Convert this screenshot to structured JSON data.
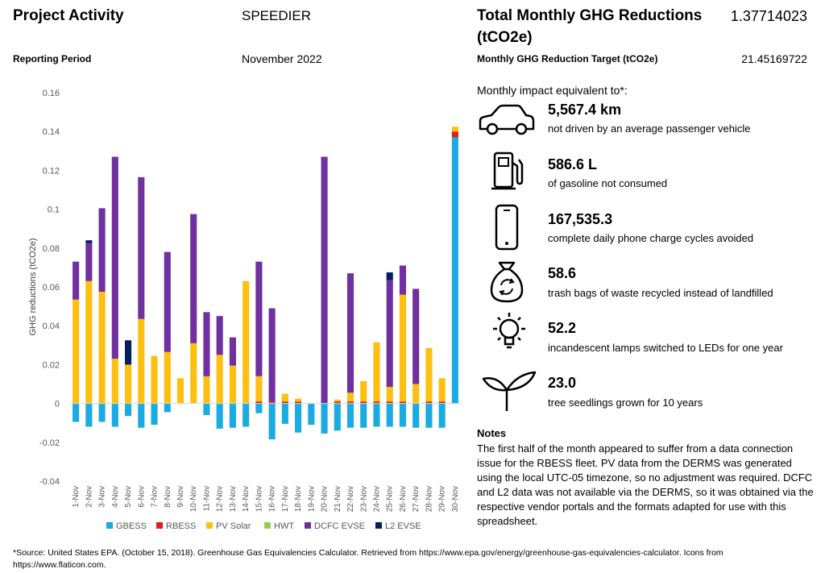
{
  "header": {
    "project_activity_label": "Project Activity",
    "project_name": "SPEEDIER",
    "reporting_period_label": "Reporting Period",
    "reporting_period_value": "November 2022",
    "total_label_line1": "Total Monthly GHG Reductions",
    "total_label_line2": "(tCO2e)",
    "total_value": "1.37714023",
    "target_label": "Monthly GHG Reduction Target (tCO2e)",
    "target_value": "21.45169722"
  },
  "impact": {
    "intro": "Monthly impact equivalent to*:",
    "items": [
      {
        "icon": "car-icon",
        "value": "5,567.4 km",
        "desc": "not driven by an average passenger vehicle"
      },
      {
        "icon": "fuel-pump-icon",
        "value": "586.6 L",
        "desc": "of gasoline not consumed"
      },
      {
        "icon": "smartphone-icon",
        "value": "167,535.3",
        "desc": "complete daily phone charge cycles avoided"
      },
      {
        "icon": "recycle-bag-icon",
        "value": "58.6",
        "desc": "trash bags of waste recycled instead of landfilled"
      },
      {
        "icon": "lightbulb-icon",
        "value": "52.2",
        "desc": "incandescent lamps switched to LEDs for one year"
      },
      {
        "icon": "seedling-icon",
        "value": "23.0",
        "desc": "tree seedlings grown for 10 years"
      }
    ]
  },
  "notes": {
    "title": "Notes",
    "body": "The first half of the month appeared to suffer from a data connection issue for the RBESS fleet. PV data from the DERMS was generated using the local UTC-05 timezone, so no adjustment was required. DCFC and L2 data was not available via the DERMS, so it was obtained via the respective vendor portals and the formats adapted for use with this spreadsheet."
  },
  "source": "*Source: United States EPA. (October 15, 2018). Greenhouse Gas Equivalencies Calculator. Retrieved from https://www.epa.gov/energy/greenhouse-gas-equivalencies-calculator. Icons from https://www.flaticon.com.",
  "chart_data": {
    "type": "bar",
    "stacked": true,
    "title": "",
    "xlabel": "",
    "ylabel": "GHG reductions (tCO2e)",
    "ylim": [
      -0.04,
      0.16
    ],
    "yticks": [
      -0.04,
      -0.02,
      0,
      0.02,
      0.04,
      0.06,
      0.08,
      0.1,
      0.12,
      0.14,
      0.16
    ],
    "ytick_labels": [
      "-0.04",
      "-0.02",
      "0",
      "0.02",
      "0.04",
      "0.06",
      "0.08",
      "0.1",
      "0.12",
      "0.14",
      "0.16"
    ],
    "grid": false,
    "legend": "bottom",
    "categories": [
      "1-Nov",
      "2-Nov",
      "3-Nov",
      "4-Nov",
      "5-Nov",
      "6-Nov",
      "7-Nov",
      "8-Nov",
      "9-Nov",
      "10-Nov",
      "11-Nov",
      "12-Nov",
      "13-Nov",
      "14-Nov",
      "15-Nov",
      "16-Nov",
      "17-Nov",
      "18-Nov",
      "19-Nov",
      "20-Nov",
      "21-Nov",
      "22-Nov",
      "23-Nov",
      "24-Nov",
      "25-Nov",
      "26-Nov",
      "27-Nov",
      "28-Nov",
      "29-Nov",
      "30-Nov"
    ],
    "series": [
      {
        "name": "GBESS",
        "color": "#1aabe3",
        "values": [
          -0.0095,
          -0.012,
          -0.0095,
          -0.012,
          -0.0065,
          -0.0125,
          -0.011,
          -0.0045,
          0,
          0,
          -0.006,
          -0.013,
          -0.0125,
          -0.012,
          -0.005,
          -0.0185,
          -0.0105,
          -0.015,
          -0.011,
          -0.0155,
          -0.014,
          -0.0125,
          -0.0125,
          -0.012,
          -0.012,
          -0.012,
          -0.0125,
          -0.0125,
          -0.0125,
          0.137
        ]
      },
      {
        "name": "RBESS",
        "color": "#e41c1c",
        "values": [
          0,
          0,
          0,
          0,
          0,
          0,
          0,
          0,
          0,
          0,
          0,
          0,
          0,
          0,
          0.001,
          0.001,
          0.001,
          0.001,
          0,
          0,
          0.001,
          0.001,
          0.001,
          0.001,
          0.001,
          0.001,
          0,
          0.001,
          0.001,
          0.003
        ]
      },
      {
        "name": "PV Solar",
        "color": "#fdc010",
        "values": [
          0.0535,
          0.063,
          0.0575,
          0.023,
          0.02,
          0.0435,
          0.0245,
          0.0265,
          0.013,
          0.031,
          0.014,
          0.025,
          0.0195,
          0.063,
          0.013,
          0,
          0.004,
          0.0015,
          0,
          0,
          0.001,
          0.0045,
          0.0105,
          0.0305,
          0.0075,
          0.055,
          0.01,
          0.0275,
          0.012,
          0.0025
        ]
      },
      {
        "name": "HWT",
        "color": "#92d050",
        "values": [
          0,
          0,
          0,
          0,
          0,
          0,
          0,
          0,
          0,
          0,
          0,
          0,
          0,
          0,
          0,
          0,
          0,
          0,
          0,
          0,
          0,
          0,
          0,
          0,
          0,
          0,
          0,
          0,
          0,
          0
        ]
      },
      {
        "name": "DCFC EVSE",
        "color": "#7030a0",
        "values": [
          0.0195,
          0.0195,
          0.043,
          0.104,
          0,
          0.073,
          0,
          0.0515,
          0,
          0.0665,
          0.033,
          0.02,
          0.0145,
          0,
          0.059,
          0.048,
          0,
          0,
          0,
          0.127,
          0,
          0.0615,
          0,
          0,
          0.055,
          0.015,
          0.049,
          0,
          0,
          0
        ]
      },
      {
        "name": "L2 EVSE",
        "color": "#002060",
        "values": [
          0,
          0.0015,
          0,
          0,
          0.0125,
          0,
          0,
          0,
          0,
          0,
          0,
          0,
          0,
          0,
          0,
          0,
          0,
          0,
          0,
          0,
          0,
          0,
          0,
          0,
          0.004,
          0,
          0,
          0,
          0,
          0
        ]
      }
    ]
  }
}
